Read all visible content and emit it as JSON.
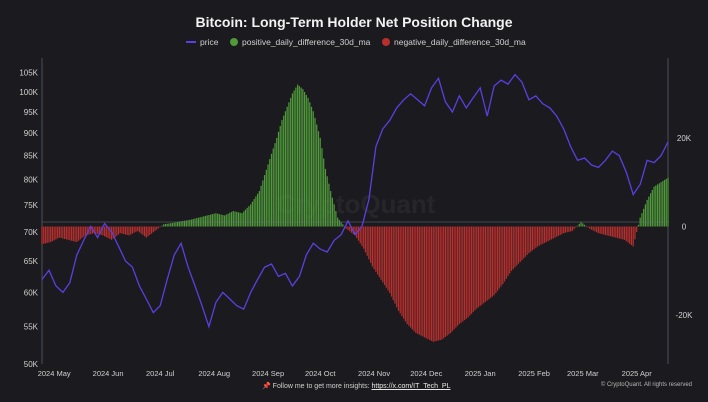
{
  "footer": {
    "pin": "📌",
    "text": "Follow me to get more insights: ",
    "link": "https://x.com/IT_Tech_PL"
  },
  "credit": "© CryptoQuant. All rights reserved",
  "watermark": "CryptoQuant",
  "colors": {
    "background": "#1b1b1f",
    "price": "#5b3fe0",
    "positive": "#4f9a3a",
    "negative": "#b8302e",
    "axis": "#444a55",
    "text": "#d0d0d0"
  },
  "chart_data": {
    "type": "bar",
    "title": "Bitcoin: Long-Term Holder Net Position Change",
    "legend": [
      {
        "name": "price",
        "color": "#5b3fe0",
        "marker": "line"
      },
      {
        "name": "positive_daily_difference_30d_ma",
        "color": "#4f9a3a",
        "marker": "circle"
      },
      {
        "name": "negative_daily_difference_30d_ma",
        "color": "#b8302e",
        "marker": "circle"
      }
    ],
    "legend_position": "top-center",
    "x_ticks": [
      "2024 May",
      "2024 Jun",
      "2024 Jul",
      "2024 Aug",
      "2024 Sep",
      "2024 Oct",
      "2024 Nov",
      "2024 Dec",
      "2025 Jan",
      "2025 Feb",
      "2025 Mar",
      "2025 Apr"
    ],
    "x_range_days": [
      0,
      360
    ],
    "x_tick_days": [
      7,
      38,
      68,
      99,
      130,
      160,
      191,
      221,
      252,
      283,
      311,
      342
    ],
    "y_left_ticks": [
      50000,
      55000,
      60000,
      65000,
      70000,
      75000,
      80000,
      85000,
      90000,
      95000,
      100000,
      105000
    ],
    "y_left_tick_labels": [
      "50K",
      "55K",
      "60K",
      "65K",
      "70K",
      "75K",
      "80K",
      "85K",
      "90K",
      "95K",
      "100K",
      "105K"
    ],
    "y_left_scale": "log",
    "y_left_range": [
      50000,
      109000
    ],
    "y_right_ticks": [
      -20000,
      0,
      20000
    ],
    "y_right_tick_labels": [
      "-20K",
      "0",
      "20K"
    ],
    "y_right_range": [
      -31000,
      38000
    ],
    "grid": false,
    "price": {
      "name": "price",
      "days": [
        0,
        4,
        8,
        12,
        16,
        20,
        24,
        28,
        32,
        36,
        40,
        44,
        48,
        52,
        56,
        60,
        64,
        68,
        72,
        76,
        80,
        84,
        88,
        92,
        96,
        100,
        104,
        108,
        112,
        116,
        120,
        124,
        128,
        132,
        136,
        140,
        144,
        148,
        152,
        156,
        160,
        164,
        168,
        172,
        176,
        180,
        184,
        188,
        192,
        196,
        200,
        204,
        208,
        212,
        216,
        220,
        224,
        228,
        232,
        236,
        240,
        244,
        248,
        252,
        256,
        260,
        264,
        268,
        272,
        276,
        280,
        284,
        288,
        292,
        296,
        300,
        304,
        308,
        312,
        316,
        320,
        324,
        328,
        332,
        336,
        340,
        344,
        348,
        352,
        356,
        360
      ],
      "values": [
        62000,
        63500,
        61000,
        60000,
        61500,
        66000,
        68500,
        71000,
        69000,
        71500,
        70000,
        67500,
        65000,
        64000,
        61000,
        59000,
        57000,
        58000,
        62000,
        66000,
        68000,
        64000,
        61000,
        58000,
        55000,
        58500,
        60000,
        59000,
        58000,
        57500,
        60000,
        62000,
        64000,
        64500,
        62500,
        63000,
        61000,
        62500,
        66000,
        68000,
        67000,
        66500,
        68500,
        69500,
        72000,
        69500,
        71000,
        76000,
        87000,
        91000,
        93000,
        96000,
        98000,
        99500,
        98000,
        96500,
        101000,
        103500,
        97500,
        95000,
        99000,
        96000,
        98500,
        101000,
        94000,
        101500,
        103000,
        102000,
        104500,
        102500,
        98000,
        99000,
        97000,
        96000,
        94000,
        91000,
        87000,
        84000,
        84500,
        83000,
        82500,
        84000,
        86000,
        85000,
        81500,
        77000,
        79000,
        84000,
        83500,
        85000,
        88000
      ]
    },
    "net_position_30d_ma": {
      "days": [
        0,
        5,
        10,
        15,
        20,
        25,
        30,
        35,
        40,
        45,
        50,
        55,
        60,
        65,
        70,
        75,
        80,
        85,
        90,
        95,
        100,
        105,
        110,
        115,
        120,
        125,
        130,
        135,
        138,
        141,
        144,
        147,
        150,
        153,
        156,
        160,
        163,
        166,
        170,
        175,
        180,
        185,
        190,
        195,
        200,
        205,
        210,
        215,
        220,
        225,
        230,
        235,
        240,
        245,
        250,
        255,
        260,
        265,
        270,
        275,
        280,
        285,
        290,
        295,
        300,
        305,
        310,
        315,
        320,
        325,
        330,
        335,
        340,
        344,
        348,
        352,
        356,
        360
      ],
      "values": [
        -4000,
        -3500,
        -2500,
        -3000,
        -3500,
        -2000,
        -1500,
        -2000,
        -3000,
        -1500,
        -2000,
        -1000,
        -2500,
        -1000,
        500,
        800,
        1200,
        1500,
        2000,
        2500,
        3000,
        2500,
        3500,
        3000,
        5000,
        8000,
        14000,
        20000,
        24000,
        27000,
        30000,
        32000,
        31000,
        29000,
        26000,
        20000,
        13000,
        8000,
        2000,
        -500,
        -2000,
        -5000,
        -9000,
        -12000,
        -15000,
        -19000,
        -22000,
        -24000,
        -25000,
        -26000,
        -25500,
        -24000,
        -22000,
        -20500,
        -18500,
        -17000,
        -15500,
        -13000,
        -10000,
        -8000,
        -6000,
        -4500,
        -3500,
        -2500,
        -1500,
        -1000,
        1000,
        -500,
        -1500,
        -2000,
        -2500,
        -3000,
        -4500,
        2000,
        6000,
        9000,
        10000,
        11000
      ]
    }
  }
}
